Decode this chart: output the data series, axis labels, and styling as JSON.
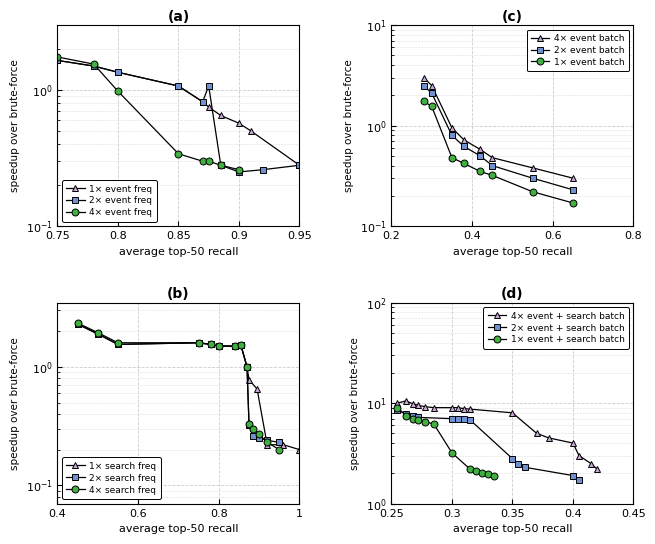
{
  "panel_a": {
    "title": "(a)",
    "xlabel": "average top-50 recall",
    "ylabel": "speedup over brute-force",
    "xlim": [
      0.75,
      0.95
    ],
    "ylim": [
      0.1,
      3.0
    ],
    "xticks": [
      0.75,
      0.8,
      0.85,
      0.9,
      0.95
    ],
    "yticks": [
      0.1,
      1.0
    ],
    "series": [
      {
        "label": "1× event freq",
        "color": "#c8a8d8",
        "marker": "^",
        "x": [
          0.75,
          0.78,
          0.8,
          0.85,
          0.87,
          0.875,
          0.885,
          0.9,
          0.91,
          0.95
        ],
        "y": [
          1.65,
          1.5,
          1.35,
          1.07,
          0.82,
          0.75,
          0.65,
          0.57,
          0.5,
          0.28
        ]
      },
      {
        "label": "2× event freq",
        "color": "#7090d0",
        "marker": "s",
        "x": [
          0.75,
          0.78,
          0.8,
          0.85,
          0.87,
          0.875,
          0.885,
          0.9,
          0.92,
          0.95
        ],
        "y": [
          1.65,
          1.5,
          1.35,
          1.07,
          0.82,
          1.07,
          0.28,
          0.25,
          0.26,
          0.28
        ]
      },
      {
        "label": "4× event freq",
        "color": "#40b040",
        "marker": "o",
        "x": [
          0.75,
          0.78,
          0.8,
          0.85,
          0.87,
          0.875,
          0.885,
          0.9
        ],
        "y": [
          1.75,
          1.55,
          0.98,
          0.34,
          0.3,
          0.3,
          0.28,
          0.26
        ]
      }
    ]
  },
  "panel_b": {
    "title": "(b)",
    "xlabel": "average top-50 recall",
    "ylabel": "speedup over brute-force",
    "xlim": [
      0.4,
      1.0
    ],
    "ylim": [
      0.07,
      3.5
    ],
    "xticks": [
      0.4,
      0.6,
      0.8,
      1.0
    ],
    "yticks": [
      0.1,
      1.0
    ],
    "series": [
      {
        "label": "1× search freq",
        "color": "#c8a8d8",
        "marker": "^",
        "x": [
          0.45,
          0.5,
          0.55,
          0.75,
          0.78,
          0.8,
          0.84,
          0.855,
          0.87,
          0.875,
          0.895,
          0.92,
          0.96,
          1.0
        ],
        "y": [
          2.3,
          1.9,
          1.55,
          1.6,
          1.55,
          1.5,
          1.5,
          1.52,
          1.0,
          0.78,
          0.65,
          0.22,
          0.22,
          0.2
        ]
      },
      {
        "label": "2× search freq",
        "color": "#7090d0",
        "marker": "s",
        "x": [
          0.45,
          0.5,
          0.55,
          0.75,
          0.78,
          0.8,
          0.84,
          0.855,
          0.87,
          0.875,
          0.885,
          0.9,
          0.92,
          0.95
        ],
        "y": [
          2.3,
          1.9,
          1.55,
          1.6,
          1.55,
          1.5,
          1.5,
          1.52,
          1.0,
          0.32,
          0.26,
          0.25,
          0.24,
          0.23
        ]
      },
      {
        "label": "4× search freq",
        "color": "#40b040",
        "marker": "o",
        "x": [
          0.45,
          0.5,
          0.55,
          0.75,
          0.78,
          0.8,
          0.84,
          0.855,
          0.87,
          0.875,
          0.885,
          0.9,
          0.92,
          0.95
        ],
        "y": [
          2.35,
          1.95,
          1.6,
          1.6,
          1.55,
          1.5,
          1.5,
          1.52,
          1.0,
          0.33,
          0.3,
          0.27,
          0.23,
          0.2
        ]
      }
    ]
  },
  "panel_c": {
    "title": "(c)",
    "xlabel": "average top-50 recall",
    "ylabel": "speedup over brute-force",
    "xlim": [
      0.2,
      0.8
    ],
    "ylim": [
      0.1,
      10.0
    ],
    "xticks": [
      0.2,
      0.4,
      0.6,
      0.8
    ],
    "yticks": [
      0.1,
      1.0,
      10.0
    ],
    "series": [
      {
        "label": "4× event batch",
        "color": "#c8a8d8",
        "marker": "^",
        "x": [
          0.28,
          0.3,
          0.35,
          0.38,
          0.42,
          0.45,
          0.55,
          0.65
        ],
        "y": [
          3.0,
          2.5,
          0.95,
          0.72,
          0.58,
          0.48,
          0.38,
          0.3
        ]
      },
      {
        "label": "2× event batch",
        "color": "#7090d0",
        "marker": "s",
        "x": [
          0.28,
          0.3,
          0.35,
          0.38,
          0.42,
          0.45,
          0.55,
          0.65
        ],
        "y": [
          2.5,
          2.1,
          0.8,
          0.62,
          0.5,
          0.4,
          0.3,
          0.23
        ]
      },
      {
        "label": "1× event batch",
        "color": "#40b040",
        "marker": "o",
        "x": [
          0.28,
          0.3,
          0.35,
          0.38,
          0.42,
          0.45,
          0.55,
          0.65
        ],
        "y": [
          1.75,
          1.55,
          0.48,
          0.42,
          0.35,
          0.32,
          0.22,
          0.17
        ]
      }
    ]
  },
  "panel_d": {
    "title": "(d)",
    "xlabel": "average top-50 recall",
    "ylabel": "speedup over brute-force",
    "xlim": [
      0.25,
      0.45
    ],
    "ylim": [
      1.0,
      100.0
    ],
    "xticks": [
      0.25,
      0.3,
      0.35,
      0.4,
      0.45
    ],
    "yticks": [
      1.0,
      10.0,
      100.0
    ],
    "series": [
      {
        "label": "4× event + search batch",
        "color": "#c8a8d8",
        "marker": "^",
        "x": [
          0.255,
          0.262,
          0.268,
          0.272,
          0.278,
          0.285,
          0.3,
          0.305,
          0.31,
          0.315,
          0.35,
          0.37,
          0.38,
          0.4,
          0.405,
          0.415,
          0.42
        ],
        "y": [
          10.0,
          10.5,
          9.8,
          9.5,
          9.2,
          9.0,
          9.0,
          9.0,
          8.8,
          8.7,
          8.0,
          5.0,
          4.5,
          4.0,
          3.0,
          2.5,
          2.2
        ]
      },
      {
        "label": "2× event + search batch",
        "color": "#7090d0",
        "marker": "s",
        "x": [
          0.255,
          0.262,
          0.268,
          0.272,
          0.3,
          0.305,
          0.31,
          0.315,
          0.35,
          0.355,
          0.36,
          0.4,
          0.405
        ],
        "y": [
          8.5,
          7.8,
          7.5,
          7.2,
          7.0,
          7.0,
          7.0,
          6.8,
          2.8,
          2.5,
          2.3,
          1.9,
          1.7
        ]
      },
      {
        "label": "1× event + search batch",
        "color": "#40b040",
        "marker": "o",
        "x": [
          0.255,
          0.262,
          0.268,
          0.272,
          0.278,
          0.285,
          0.3,
          0.315,
          0.32,
          0.325,
          0.33,
          0.335
        ],
        "y": [
          9.0,
          7.5,
          7.0,
          6.8,
          6.5,
          6.2,
          3.2,
          2.2,
          2.1,
          2.0,
          1.95,
          1.9
        ]
      }
    ]
  }
}
